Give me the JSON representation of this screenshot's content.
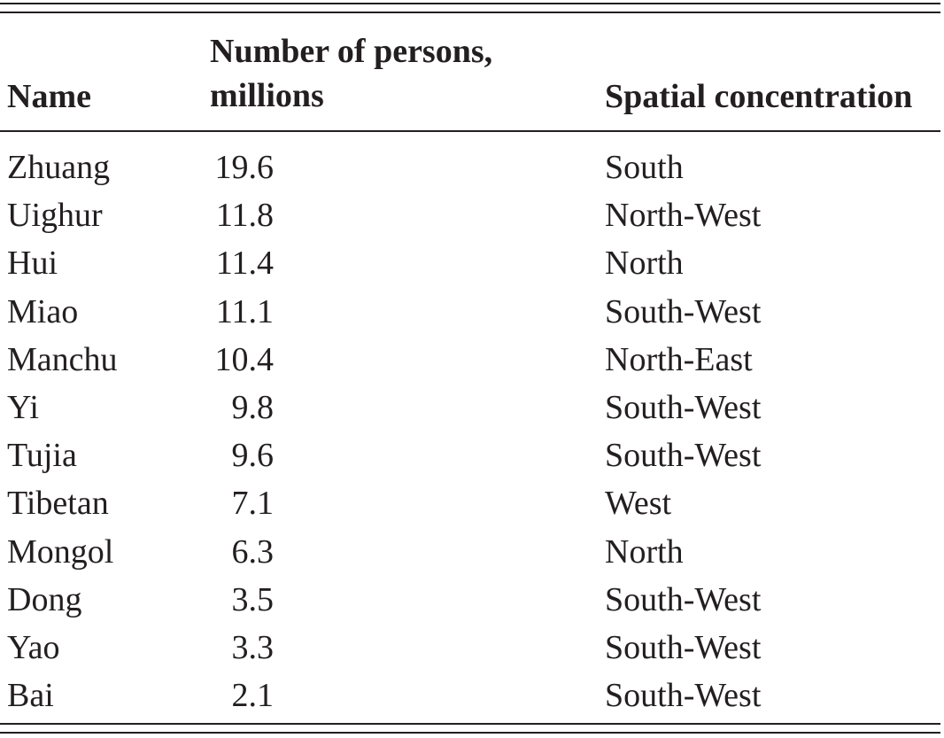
{
  "table": {
    "headers": {
      "name": "Name",
      "number_line1": "Number of persons,",
      "number_line2": "millions",
      "spatial": "Spatial concentration"
    },
    "rows": [
      {
        "name": "Zhuang",
        "number": "19.6",
        "spatial": "South"
      },
      {
        "name": "Uighur",
        "number": "11.8",
        "spatial": "North-West"
      },
      {
        "name": "Hui",
        "number": "11.4",
        "spatial": "North"
      },
      {
        "name": "Miao",
        "number": "11.1",
        "spatial": "South-West"
      },
      {
        "name": "Manchu",
        "number": "10.4",
        "spatial": "North-East"
      },
      {
        "name": "Yi",
        "number": "9.8",
        "spatial": "South-West"
      },
      {
        "name": "Tujia",
        "number": "9.6",
        "spatial": "South-West"
      },
      {
        "name": "Tibetan",
        "number": "7.1",
        "spatial": "West"
      },
      {
        "name": "Mongol",
        "number": "6.3",
        "spatial": "North"
      },
      {
        "name": "Dong",
        "number": "3.5",
        "spatial": "South-West"
      },
      {
        "name": "Yao",
        "number": "3.3",
        "spatial": "South-West"
      },
      {
        "name": "Bai",
        "number": "2.1",
        "spatial": "South-West"
      }
    ]
  }
}
